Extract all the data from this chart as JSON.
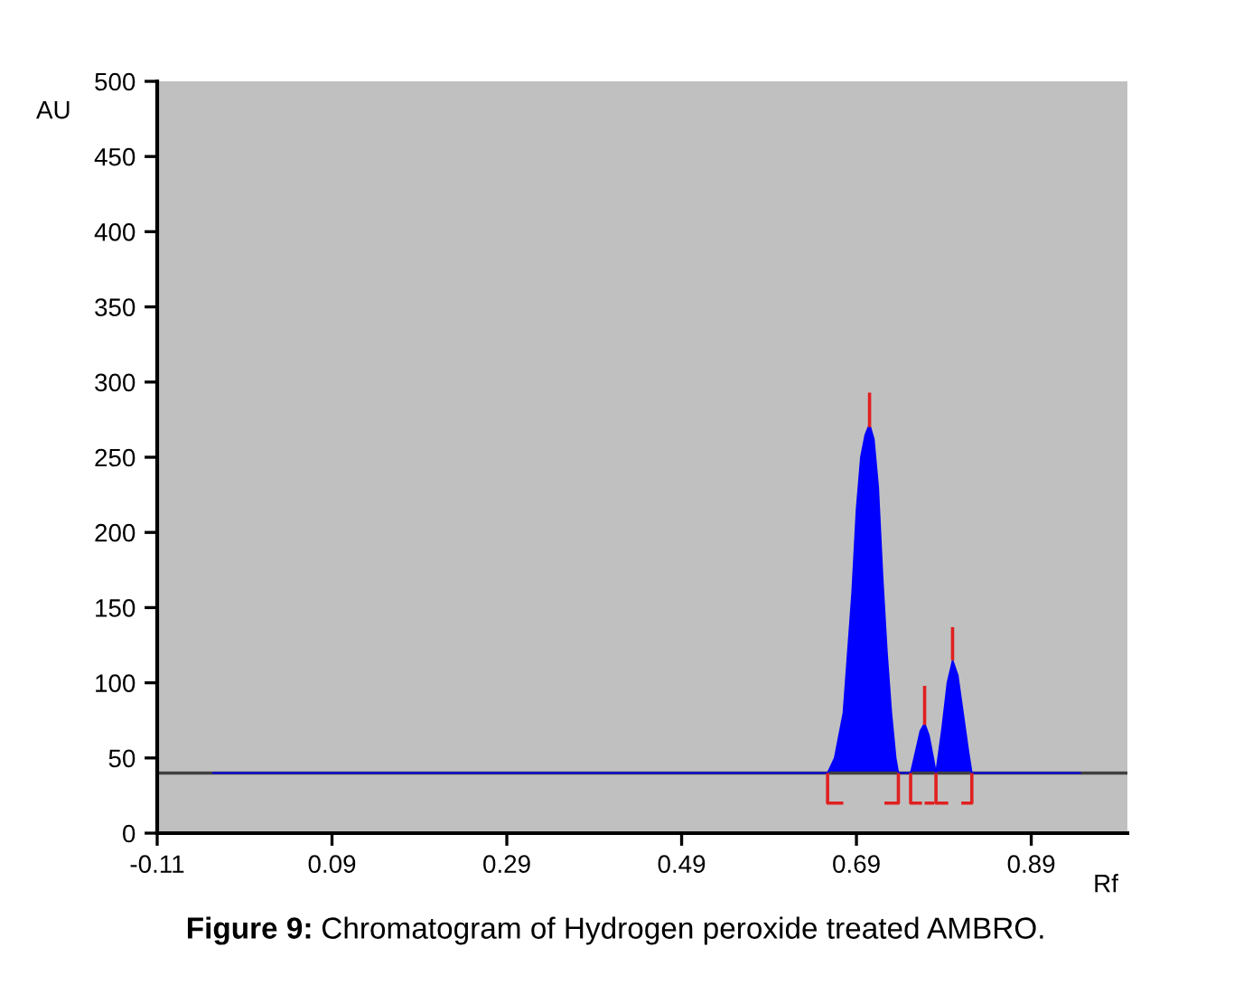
{
  "chart_data": {
    "type": "area",
    "xlabel": "Rf",
    "ylabel": "AU",
    "xlim": [
      -0.11,
      1.0
    ],
    "xticks": [
      -0.11,
      0.09,
      0.29,
      0.49,
      0.69,
      0.89
    ],
    "ylim": [
      0,
      500
    ],
    "yticks": [
      0,
      50,
      100,
      150,
      200,
      250,
      300,
      350,
      400,
      450,
      500
    ],
    "grid": false,
    "series": [
      {
        "type": "line",
        "color": "#404040",
        "x": [
          -0.11,
          1.0
        ],
        "values": [
          40,
          40
        ]
      },
      {
        "color": "#0000ff",
        "x": [
          -0.046,
          0.657,
          0.665,
          0.675,
          0.68,
          0.685,
          0.69,
          0.695,
          0.7,
          0.705,
          0.71,
          0.715,
          0.72,
          0.725,
          0.73,
          0.735,
          0.738,
          0.752,
          0.758,
          0.763,
          0.768,
          0.773,
          0.778,
          0.781,
          0.788,
          0.794,
          0.8,
          0.806,
          0.812,
          0.818,
          0.822,
          0.946
        ],
        "values": [
          40,
          40,
          50,
          80,
          120,
          160,
          215,
          250,
          265,
          272,
          262,
          230,
          170,
          120,
          80,
          50,
          40,
          40,
          55,
          68,
          73,
          65,
          50,
          40,
          70,
          100,
          115,
          105,
          80,
          55,
          40,
          40
        ]
      },
      {
        "type": "line",
        "color": "#e02020",
        "x": [
          0.705,
          0.705,
          null,
          0.768,
          0.768,
          null,
          0.8,
          0.8,
          null,
          0.675,
          0.657,
          0.657,
          null,
          0.722,
          0.738,
          0.738,
          null,
          0.752,
          0.752,
          0.765,
          null,
          0.768,
          0.779,
          null,
          0.781,
          0.781,
          0.795,
          null,
          0.81,
          0.822,
          0.822
        ],
        "values": [
          270,
          293,
          null,
          72,
          98,
          null,
          115,
          137,
          null,
          20,
          20,
          40,
          null,
          20,
          20,
          40,
          null,
          40,
          20,
          20,
          null,
          20,
          20,
          null,
          40,
          20,
          20,
          null,
          20,
          20,
          40
        ]
      }
    ],
    "annotations": [
      "Figure 9: Chromatogram of Hydrogen peroxide treated AMBRO."
    ]
  }
}
